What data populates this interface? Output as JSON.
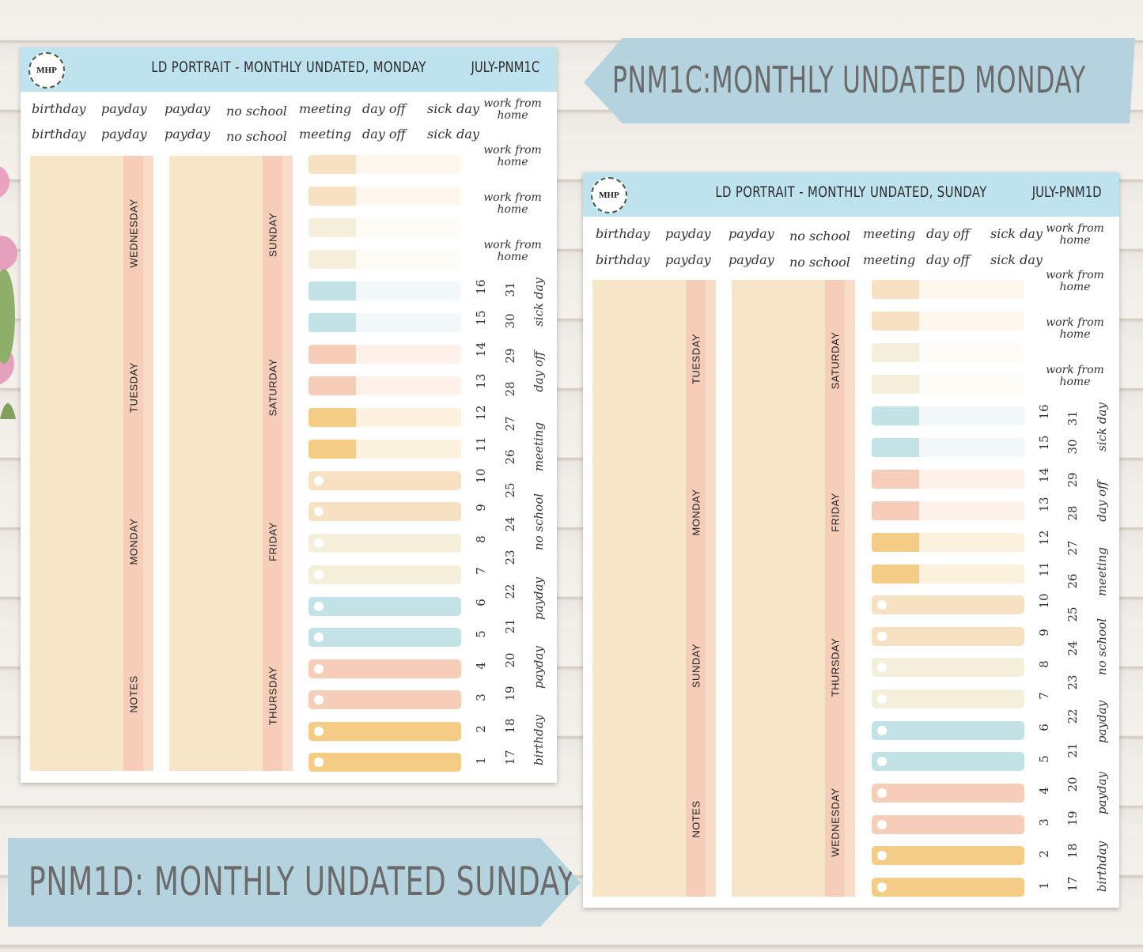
{
  "banners": {
    "top": "PNM1C:MONTHLY UNDATED MONDAY",
    "bottom": "PNM1D: MONTHLY UNDATED SUNDAY"
  },
  "sheets": [
    {
      "logo": "MHP",
      "title": "LD PORTRAIT - MONTHLY UNDATED, MONDAY",
      "code": "JULY-PNM1C",
      "word_row": [
        "birthday",
        "payday",
        "payday",
        "no school",
        "meeting",
        "day off",
        "sick day"
      ],
      "wfh": "work from home",
      "box1_labels": [
        "WEDNESDAY",
        "TUESDAY",
        "MONDAY",
        "NOTES"
      ],
      "box2_labels": [
        "SUNDAY",
        "SATURDAY",
        "FRIDAY",
        "THURSDAY"
      ],
      "numbers_a": [
        "16",
        "15",
        "14",
        "13",
        "12",
        "11",
        "10",
        "9",
        "8",
        "7",
        "6",
        "5",
        "4",
        "3",
        "2",
        "1"
      ],
      "numbers_b": [
        "31",
        "30",
        "29",
        "28",
        "27",
        "26",
        "25",
        "24",
        "23",
        "22",
        "21",
        "20",
        "19",
        "18",
        "17"
      ],
      "vertical_words": [
        "sick day",
        "day off",
        "meeting",
        "no school",
        "payday",
        "payday",
        "birthday"
      ]
    },
    {
      "logo": "MHP",
      "title": "LD PORTRAIT - MONTHLY UNDATED, SUNDAY",
      "code": "JULY-PNM1D",
      "word_row": [
        "birthday",
        "payday",
        "payday",
        "no school",
        "meeting",
        "day off",
        "sick day"
      ],
      "wfh": "work from home",
      "box1_labels": [
        "TUESDAY",
        "MONDAY",
        "SUNDAY",
        "NOTES"
      ],
      "box2_labels": [
        "SATURDAY",
        "FRIDAY",
        "THURSDAY",
        "WEDNESDAY"
      ],
      "numbers_a": [
        "16",
        "15",
        "14",
        "13",
        "12",
        "11",
        "10",
        "9",
        "8",
        "7",
        "6",
        "5",
        "4",
        "3",
        "2",
        "1"
      ],
      "numbers_b": [
        "31",
        "30",
        "29",
        "28",
        "27",
        "26",
        "25",
        "24",
        "23",
        "22",
        "21",
        "20",
        "19",
        "18",
        "17"
      ],
      "vertical_words": [
        "sick day",
        "day off",
        "meeting",
        "no school",
        "payday",
        "payday",
        "birthday"
      ]
    }
  ],
  "colors": {
    "header": "#bfe3ee",
    "beige": "#f6e5c7",
    "strip": "#f5cdb8",
    "cream": "#f3eedb",
    "blue": "#bfe1e6",
    "peach": "#f5cdb8",
    "gold": "#f5cc85"
  }
}
